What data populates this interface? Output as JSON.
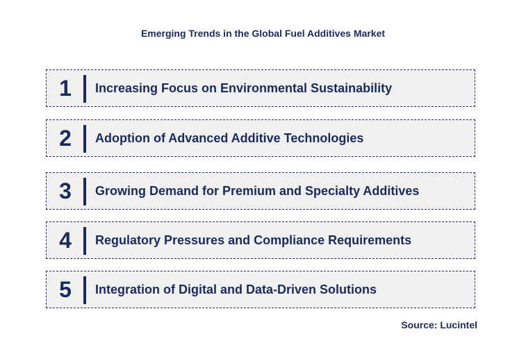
{
  "title": "Emerging Trends in the Global Fuel Additives Market",
  "trends": [
    {
      "number": "1",
      "label": "Increasing Focus on Environmental Sustainability"
    },
    {
      "number": "2",
      "label": "Adoption of Advanced Additive Technologies"
    },
    {
      "number": "3",
      "label": "Growing Demand for Premium and Specialty Additives"
    },
    {
      "number": "4",
      "label": "Regulatory Pressures and Compliance Requirements"
    },
    {
      "number": "5",
      "label": "Integration of Digital and Data-Driven Solutions"
    }
  ],
  "source": "Source: Lucintel",
  "colors": {
    "text": "#1a2a5c",
    "box_fill": "#f0f0f0",
    "box_border": "#1f2f66"
  }
}
